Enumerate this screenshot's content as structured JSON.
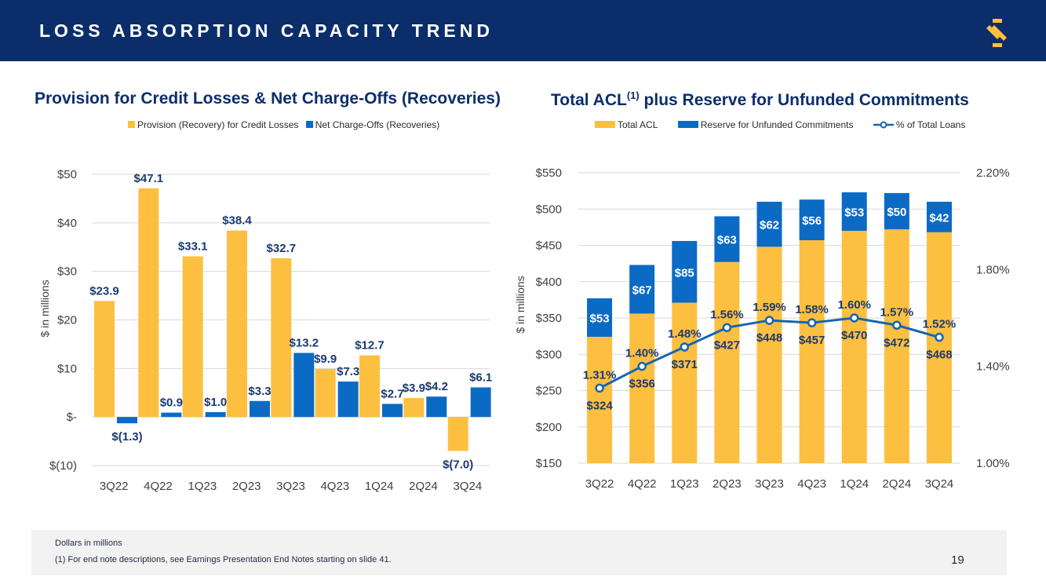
{
  "header": {
    "title": "LOSS ABSORPTION CAPACITY TREND"
  },
  "colors": {
    "navy": "#0b2e6b",
    "gold": "#fdbf3f",
    "blue": "#0b6bc4",
    "label": "#1a3a73",
    "grid": "#d9d9d9"
  },
  "chart_data": [
    {
      "type": "bar",
      "title": "Provision for Credit Losses & Net Charge-Offs (Recoveries)",
      "ylabel": "$ in millions",
      "ylim": [
        -10,
        50
      ],
      "yticks": [
        {
          "value": 50,
          "label": "$50"
        },
        {
          "value": 40,
          "label": "$40"
        },
        {
          "value": 30,
          "label": "$30"
        },
        {
          "value": 20,
          "label": "$20"
        },
        {
          "value": 10,
          "label": "$10"
        },
        {
          "value": 0,
          "label": "$-"
        },
        {
          "value": -10,
          "label": "$(10)"
        }
      ],
      "categories": [
        "3Q22",
        "4Q22",
        "1Q23",
        "2Q23",
        "3Q23",
        "4Q23",
        "1Q24",
        "2Q24",
        "3Q24"
      ],
      "series": [
        {
          "name": "Provision (Recovery) for Credit Losses",
          "values": [
            23.9,
            47.1,
            33.1,
            38.4,
            32.7,
            9.9,
            12.7,
            3.9,
            -7.0
          ],
          "labels": [
            "$23.9",
            "$47.1",
            "$33.1",
            "$38.4",
            "$32.7",
            "$9.9",
            "$12.7",
            "$3.9",
            "$(7.0)"
          ]
        },
        {
          "name": "Net Charge-Offs (Recoveries)",
          "values": [
            -1.3,
            0.9,
            1.0,
            3.3,
            13.2,
            7.3,
            2.7,
            4.2,
            6.1
          ],
          "labels": [
            "$(1.3)",
            "$0.9",
            "$1.0",
            "$3.3",
            "$13.2",
            "$7.3",
            "$2.7",
            "$4.2",
            "$6.1"
          ]
        }
      ]
    },
    {
      "type": "bar",
      "stacked": true,
      "title": "Total ACL",
      "title_sup": "(1)",
      "title_rest": " plus Reserve for Unfunded Commitments",
      "ylabel": "$ in millions",
      "ylim": [
        150,
        550
      ],
      "yticks": [
        {
          "value": 550,
          "label": "$550"
        },
        {
          "value": 500,
          "label": "$500"
        },
        {
          "value": 450,
          "label": "$450"
        },
        {
          "value": 400,
          "label": "$400"
        },
        {
          "value": 350,
          "label": "$350"
        },
        {
          "value": 300,
          "label": "$300"
        },
        {
          "value": 250,
          "label": "$250"
        },
        {
          "value": 200,
          "label": "$200"
        },
        {
          "value": 150,
          "label": "$150"
        }
      ],
      "y2lim": [
        1.0,
        2.2
      ],
      "y2ticks": [
        {
          "value": 2.2,
          "label": "2.20%"
        },
        {
          "value": 1.8,
          "label": "1.80%"
        },
        {
          "value": 1.4,
          "label": "1.40%"
        },
        {
          "value": 1.0,
          "label": "1.00%"
        }
      ],
      "categories": [
        "3Q22",
        "4Q22",
        "1Q23",
        "2Q23",
        "3Q23",
        "4Q23",
        "1Q24",
        "2Q24",
        "3Q24"
      ],
      "series": [
        {
          "name": "Total ACL",
          "values": [
            324,
            356,
            371,
            427,
            448,
            457,
            470,
            472,
            468
          ],
          "labels": [
            "$324",
            "$356",
            "$371",
            "$427",
            "$448",
            "$457",
            "$470",
            "$472",
            "$468"
          ]
        },
        {
          "name": "Reserve for Unfunded Commitments",
          "values": [
            53,
            67,
            85,
            63,
            62,
            56,
            53,
            50,
            42
          ],
          "labels": [
            "$53",
            "$67",
            "$85",
            "$63",
            "$62",
            "$56",
            "$53",
            "$50",
            "$42"
          ]
        },
        {
          "name": "% of Total Loans",
          "type": "line",
          "axis": "right",
          "values": [
            1.31,
            1.4,
            1.48,
            1.56,
            1.59,
            1.58,
            1.6,
            1.57,
            1.52
          ],
          "labels": [
            "1.31%",
            "1.40%",
            "1.48%",
            "1.56%",
            "1.59%",
            "1.58%",
            "1.60%",
            "1.57%",
            "1.52%"
          ]
        }
      ]
    }
  ],
  "footer": {
    "note1": "Dollars in millions",
    "note2": "(1)   For end note descriptions, see Earnings Presentation End Notes starting on slide 41.",
    "page": "19"
  }
}
